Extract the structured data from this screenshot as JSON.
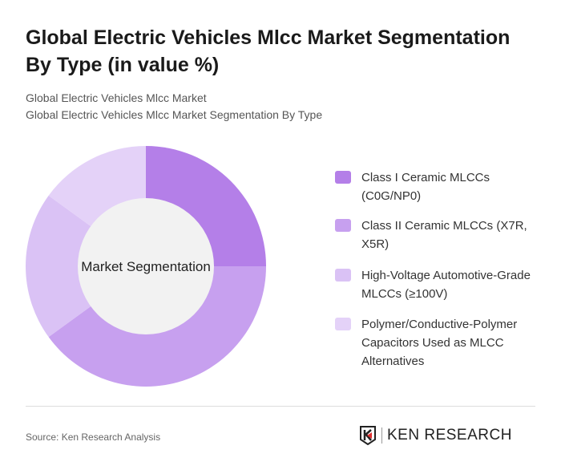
{
  "title": "Global Electric Vehicles Mlcc Market Segmentation By Type (in value %)",
  "subtitle_1": "Global Electric Vehicles Mlcc Market",
  "subtitle_2": "Global Electric Vehicles Mlcc Market Segmentation By Type",
  "source": "Source: Ken Research Analysis",
  "logo_text": "KEN RESEARCH",
  "chart_data": {
    "type": "pie",
    "variant": "donut",
    "center_label": "Market Segmentation",
    "legend_position": "right",
    "categories": [
      "Class I Ceramic MLCCs (C0G/NP0)",
      "Class II Ceramic MLCCs (X7R, X5R)",
      "High-Voltage Automotive-Grade MLCCs (≥100V)",
      "Polymer/Conductive-Polymer Capacitors Used as MLCC Alternatives"
    ],
    "values": [
      25,
      40,
      20,
      15
    ],
    "colors": [
      "#b47fe8",
      "#c7a0ef",
      "#dac2f5",
      "#e4d2f8"
    ],
    "center_fill": "#f2f2f2"
  }
}
